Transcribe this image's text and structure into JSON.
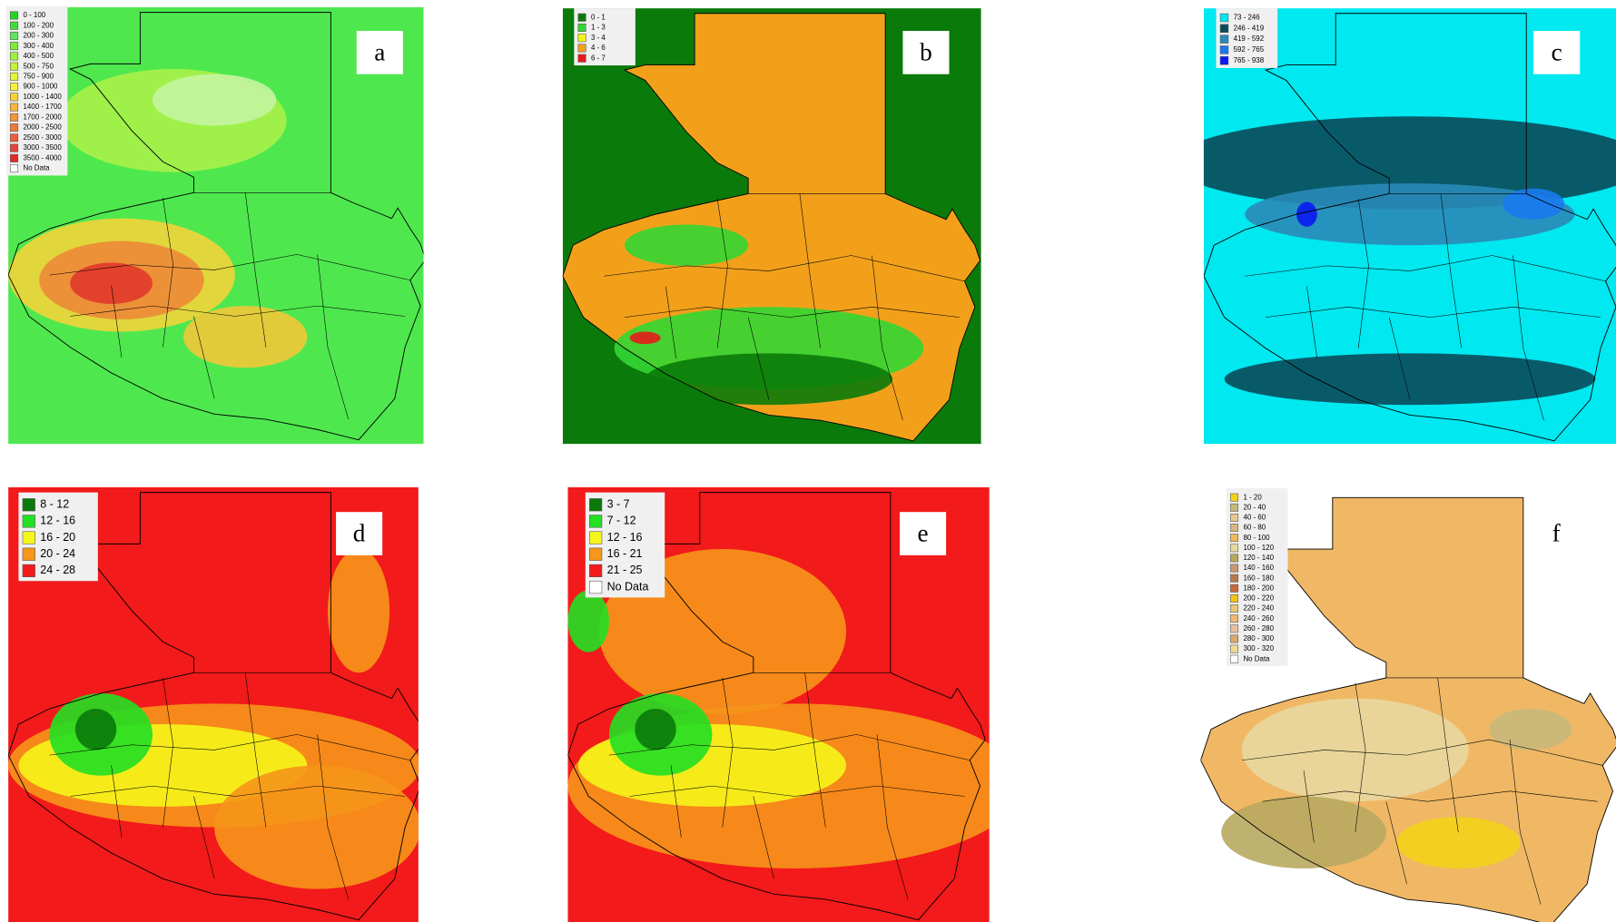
{
  "panels": [
    {
      "label": "a",
      "legend": [
        {
          "label": "0 - 100",
          "color": "#1fd61f"
        },
        {
          "label": "100 - 200",
          "color": "#3be03b"
        },
        {
          "label": "200 - 300",
          "color": "#5ee85e"
        },
        {
          "label": "300 - 400",
          "color": "#7aee3a"
        },
        {
          "label": "400 - 500",
          "color": "#9ef23a"
        },
        {
          "label": "500 - 750",
          "color": "#c2f43a"
        },
        {
          "label": "750 - 900",
          "color": "#e2f43a"
        },
        {
          "label": "900 - 1000",
          "color": "#f6f03a"
        },
        {
          "label": "1000 - 1400",
          "color": "#f6d23a"
        },
        {
          "label": "1400 - 1700",
          "color": "#f6b43a"
        },
        {
          "label": "1700 - 2000",
          "color": "#f2963a"
        },
        {
          "label": "2000 - 2500",
          "color": "#ee7a3a"
        },
        {
          "label": "2500 - 3000",
          "color": "#ea5e3a"
        },
        {
          "label": "3000 - 3500",
          "color": "#e6443a"
        },
        {
          "label": "3500 - 4000",
          "color": "#e02a2a"
        },
        {
          "label": "No Data",
          "color": "#ffffff"
        }
      ]
    },
    {
      "label": "b",
      "legend": [
        {
          "label": "0 - 1",
          "color": "#0a7a0a"
        },
        {
          "label": "1 - 3",
          "color": "#33d633"
        },
        {
          "label": "3 - 4",
          "color": "#f2f21a"
        },
        {
          "label": "4 - 6",
          "color": "#f2a01a"
        },
        {
          "label": "6 - 7",
          "color": "#e61a1a"
        }
      ]
    },
    {
      "label": "c",
      "legend": [
        {
          "label": "73 - 246",
          "color": "#00e8f0"
        },
        {
          "label": "246 - 419",
          "color": "#0a4a5a"
        },
        {
          "label": "419 - 592",
          "color": "#2a8ab8"
        },
        {
          "label": "592 - 765",
          "color": "#1a7af0"
        },
        {
          "label": "765 - 938",
          "color": "#0a1af0"
        }
      ]
    },
    {
      "label": "d",
      "legend": [
        {
          "label": "8 - 12",
          "color": "#0a7a0a"
        },
        {
          "label": "12 - 16",
          "color": "#22e022"
        },
        {
          "label": "16 - 20",
          "color": "#f6f61a"
        },
        {
          "label": "20 - 24",
          "color": "#f6961a"
        },
        {
          "label": "24 - 28",
          "color": "#f21a1a"
        }
      ]
    },
    {
      "label": "e",
      "legend": [
        {
          "label": "3 - 7",
          "color": "#0a7a0a"
        },
        {
          "label": "7 - 12",
          "color": "#22e022"
        },
        {
          "label": "12 - 16",
          "color": "#f6f61a"
        },
        {
          "label": "16 - 21",
          "color": "#f6961a"
        },
        {
          "label": "21 - 25",
          "color": "#f21a1a"
        },
        {
          "label": "No Data",
          "color": "#ffffff"
        }
      ]
    },
    {
      "label": "f",
      "legend": [
        {
          "label": "1 - 20",
          "color": "#f2d21a"
        },
        {
          "label": "20 - 40",
          "color": "#c8b87a"
        },
        {
          "label": "40 - 60",
          "color": "#e8c890"
        },
        {
          "label": "60 - 80",
          "color": "#d8b880"
        },
        {
          "label": "80 - 100",
          "color": "#f0b860"
        },
        {
          "label": "100 - 120",
          "color": "#e8d8a0"
        },
        {
          "label": "120 - 140",
          "color": "#b8a860"
        },
        {
          "label": "140 - 160",
          "color": "#c89870"
        },
        {
          "label": "160 - 180",
          "color": "#b87850"
        },
        {
          "label": "180 - 200",
          "color": "#c86a3a"
        },
        {
          "label": "200 - 220",
          "color": "#f2c21a"
        },
        {
          "label": "220 - 240",
          "color": "#e8c878"
        },
        {
          "label": "240 - 260",
          "color": "#f0b870"
        },
        {
          "label": "260 - 280",
          "color": "#e8c0a0"
        },
        {
          "label": "280 - 300",
          "color": "#d8a870"
        },
        {
          "label": "300 - 320",
          "color": "#f0d890"
        },
        {
          "label": "No Data",
          "color": "#ffffff"
        }
      ]
    }
  ]
}
